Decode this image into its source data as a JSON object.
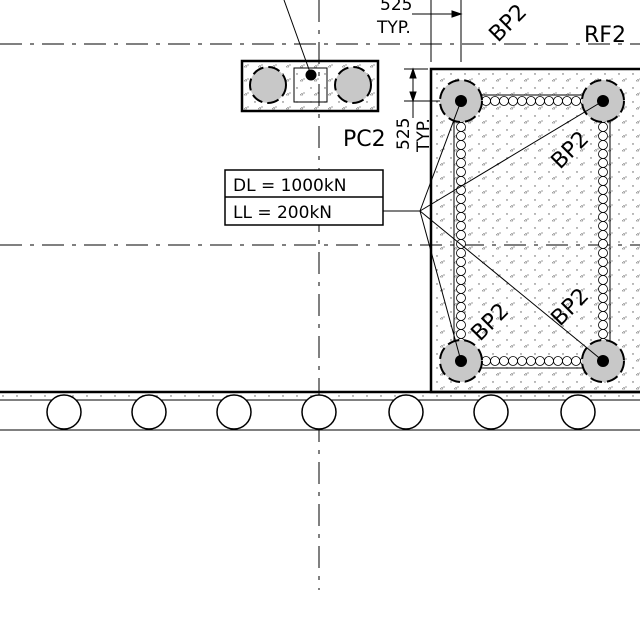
{
  "labels": {
    "dim_top_value": "525",
    "dim_top_typ": "TYP.",
    "dim_side_value": "525",
    "dim_side_typ": "TYP.",
    "pile_cap_main": "BP2",
    "pile_cap_upper_right": "BP2",
    "pile_cap_lower_left": "BP2",
    "pile_cap_lower_right": "BP2",
    "raft": "RF2",
    "pile_cap_small": "PC2"
  },
  "load_table": {
    "dead_load": "DL = 1000kN",
    "live_load": "LL = 200kN"
  }
}
